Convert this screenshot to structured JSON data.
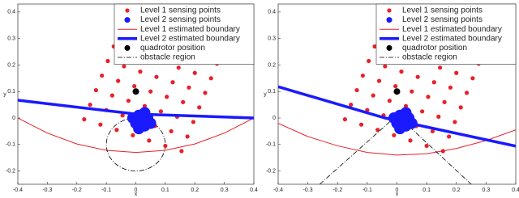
{
  "chart_data": [
    {
      "type": "combo",
      "xlabel": "x",
      "ylabel": "y",
      "xlim": [
        -0.4,
        0.4
      ],
      "ylim": [
        -0.25,
        0.43
      ],
      "xticks": [
        -0.4,
        -0.3,
        -0.2,
        -0.1,
        0,
        0.1,
        0.2,
        0.3,
        0.4
      ],
      "yticks": [
        -0.2,
        -0.1,
        0,
        0.1,
        0.2,
        0.3,
        0.4
      ],
      "legend": "upper right",
      "series": [
        {
          "name": "Level 1 sensing points",
          "type": "scatter",
          "color": "#e8202a",
          "size": 2.6,
          "x": [
            -0.175,
            -0.12,
            -0.065,
            -0.01,
            0.045,
            0.1,
            0.155,
            -0.155,
            -0.1,
            -0.045,
            0.01,
            0.065,
            0.12,
            0.175,
            -0.135,
            -0.08,
            -0.025,
            0.03,
            0.085,
            0.14,
            0.195,
            -0.115,
            -0.06,
            -0.005,
            0.05,
            0.105,
            0.16,
            0.215,
            -0.095,
            -0.04,
            0.015,
            0.07,
            0.125,
            0.18,
            0.235,
            -0.075,
            -0.02,
            0.035,
            0.09,
            0.145,
            0.2,
            0.255,
            -0.055,
            0,
            0.055,
            0.11,
            0.165,
            0.22,
            0.275
          ],
          "values": [
            -0.005,
            -0.025,
            -0.045,
            -0.065,
            -0.085,
            -0.105,
            -0.125,
            0.05,
            0.03,
            0.01,
            -0.01,
            -0.03,
            -0.05,
            -0.07,
            0.105,
            0.085,
            0.065,
            0.045,
            0.025,
            0.005,
            -0.015,
            0.16,
            0.14,
            0.12,
            0.1,
            0.08,
            0.06,
            0.04,
            0.215,
            0.195,
            0.175,
            0.155,
            0.135,
            0.115,
            0.095,
            0.27,
            0.25,
            0.23,
            0.21,
            0.19,
            0.17,
            0.15,
            0.325,
            0.305,
            0.285,
            0.265,
            0.245,
            0.225,
            0.205
          ]
        },
        {
          "name": "Level 2 sensing points",
          "type": "scatter",
          "color": "#1a1aff",
          "size": 7,
          "x": [
            0.01,
            0.03,
            0.05,
            0,
            0.02,
            0.04,
            -0.01,
            0.01,
            0.03
          ],
          "values": [
            -0.04,
            -0.03,
            -0.02,
            -0.02,
            -0.01,
            0,
            0,
            0.01,
            0.02
          ]
        },
        {
          "name": "Level 1 estimated boundary",
          "type": "line",
          "color": "#e8202a",
          "linewidth": 1,
          "x": [
            -0.4,
            -0.3,
            -0.2,
            -0.1,
            0,
            0.1,
            0.2,
            0.3,
            0.4
          ],
          "values": [
            0,
            -0.057,
            -0.098,
            -0.122,
            -0.13,
            -0.122,
            -0.098,
            -0.057,
            0
          ]
        },
        {
          "name": "Level 2 estimated boundary",
          "type": "line",
          "color": "#1a1aff",
          "linewidth": 3.5,
          "x": [
            -0.4,
            0,
            0.4
          ],
          "values": [
            0.067,
            0.015,
            0
          ]
        },
        {
          "name": "quadrotor position",
          "type": "scatter",
          "color": "#000000",
          "size": 4,
          "x": [
            0
          ],
          "values": [
            0.1
          ]
        },
        {
          "name": "obstacle region",
          "type": "circle",
          "color": "#000000",
          "linewidth": 0.8,
          "dash": "dashdot",
          "x": [
            0
          ],
          "values": [
            -0.1
          ],
          "radius": [
            0.1
          ]
        }
      ]
    },
    {
      "type": "combo",
      "xlabel": "x",
      "ylabel": "y",
      "xlim": [
        -0.4,
        0.4
      ],
      "ylim": [
        -0.25,
        0.43
      ],
      "xticks": [
        -0.4,
        -0.3,
        -0.2,
        -0.1,
        0,
        0.1,
        0.2,
        0.3,
        0.4
      ],
      "yticks": [
        -0.2,
        -0.1,
        0,
        0.1,
        0.2,
        0.3,
        0.4
      ],
      "legend": "upper right",
      "series": [
        {
          "name": "Level 1 sensing points",
          "type": "scatter",
          "color": "#e8202a",
          "size": 2.6,
          "x": [
            -0.175,
            -0.12,
            -0.065,
            -0.01,
            0.045,
            0.1,
            0.155,
            -0.155,
            -0.1,
            -0.045,
            0.01,
            0.065,
            0.12,
            0.175,
            -0.135,
            -0.08,
            -0.025,
            0.03,
            0.085,
            0.14,
            0.195,
            -0.115,
            -0.06,
            -0.005,
            0.05,
            0.105,
            0.16,
            0.215,
            -0.095,
            -0.04,
            0.015,
            0.07,
            0.125,
            0.18,
            0.235,
            -0.075,
            -0.02,
            0.035,
            0.09,
            0.145,
            0.2,
            0.255,
            -0.055,
            0,
            0.055,
            0.11,
            0.165,
            0.22,
            0.275
          ],
          "values": [
            -0.005,
            -0.025,
            -0.045,
            -0.065,
            -0.085,
            -0.105,
            -0.125,
            0.05,
            0.03,
            0.01,
            -0.01,
            -0.03,
            -0.05,
            -0.07,
            0.105,
            0.085,
            0.065,
            0.045,
            0.025,
            0.005,
            -0.015,
            0.16,
            0.14,
            0.12,
            0.1,
            0.08,
            0.06,
            0.04,
            0.215,
            0.195,
            0.175,
            0.155,
            0.135,
            0.115,
            0.095,
            0.27,
            0.25,
            0.23,
            0.21,
            0.19,
            0.17,
            0.15,
            0.325,
            0.305,
            0.285,
            0.265,
            0.245,
            0.225,
            0.205
          ]
        },
        {
          "name": "Level 2 sensing points",
          "type": "scatter",
          "color": "#1a1aff",
          "size": 7,
          "x": [
            0.01,
            0.03,
            0.05,
            0,
            0.02,
            0.04,
            -0.01,
            0.01,
            0.03
          ],
          "values": [
            -0.04,
            -0.03,
            -0.02,
            -0.02,
            -0.01,
            0,
            0,
            0.01,
            0.02
          ]
        },
        {
          "name": "Level 1 estimated boundary",
          "type": "line",
          "color": "#e8202a",
          "linewidth": 1,
          "x": [
            -0.4,
            -0.3,
            -0.2,
            -0.1,
            0,
            0.1,
            0.2,
            0.3,
            0.4
          ],
          "values": [
            -0.02,
            -0.07,
            -0.105,
            -0.13,
            -0.14,
            -0.135,
            -0.115,
            -0.085,
            -0.045
          ]
        },
        {
          "name": "Level 2 estimated boundary",
          "type": "line",
          "color": "#1a1aff",
          "linewidth": 3.5,
          "x": [
            -0.4,
            -0.04,
            0.4
          ],
          "values": [
            0.118,
            0,
            -0.106
          ]
        },
        {
          "name": "quadrotor position",
          "type": "scatter",
          "color": "#000000",
          "size": 4,
          "x": [
            0
          ],
          "values": [
            0.1
          ]
        },
        {
          "name": "obstacle region",
          "type": "line",
          "color": "#000000",
          "linewidth": 0.8,
          "dash": "dashdot",
          "x": [
            -0.26,
            -0.02,
            0,
            0.02,
            0.25
          ],
          "values": [
            -0.25,
            -0.01,
            null,
            -0.01,
            -0.25
          ]
        }
      ]
    }
  ]
}
